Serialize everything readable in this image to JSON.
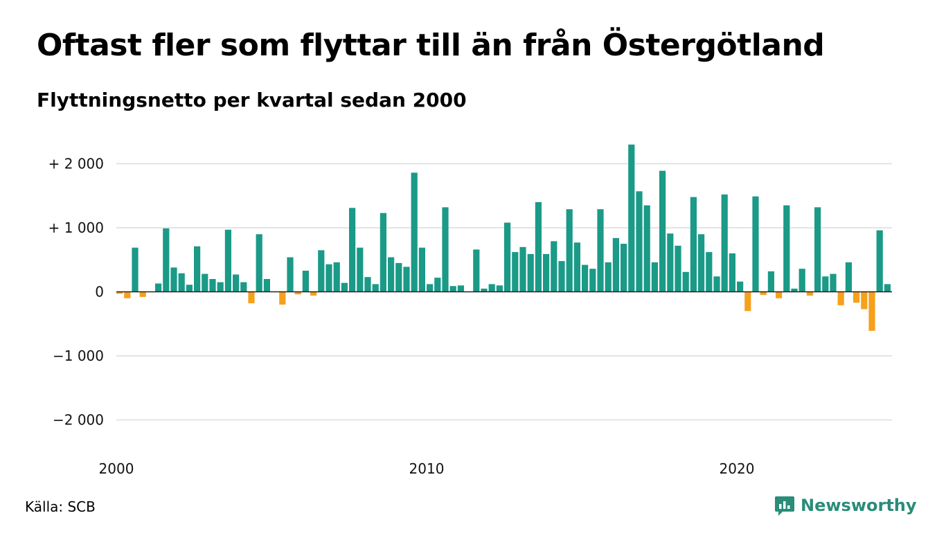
{
  "title": "Oftast fler som flyttar till än från Östergötland",
  "subtitle": "Flyttningsnetto per kvartal sedan 2000",
  "source": "Källa: SCB",
  "brand": {
    "name": "Newsworthy",
    "icon": "newsworthy-logo-icon",
    "color": "#2a8c79"
  },
  "chart_data": {
    "type": "bar",
    "x_start": 2000,
    "periods_per_year": 4,
    "xticks": [
      2000,
      2010,
      2020
    ],
    "xtick_labels": [
      "2000",
      "2010",
      "2020"
    ],
    "yticks": [
      2000,
      1000,
      0,
      -1000,
      -2000
    ],
    "ytick_labels": [
      "+ 2 000",
      "+ 1 000",
      "0",
      "−1 000",
      "−2 000"
    ],
    "ylim": [
      -2400,
      2400
    ],
    "grid": true,
    "positive_color": "#1a9a87",
    "negative_color": "#f5a11c",
    "values": [
      -30,
      -100,
      690,
      -80,
      0,
      130,
      990,
      380,
      290,
      110,
      710,
      280,
      200,
      150,
      970,
      270,
      150,
      -180,
      900,
      200,
      0,
      -200,
      540,
      -40,
      330,
      -60,
      650,
      430,
      460,
      140,
      1310,
      690,
      230,
      120,
      1230,
      540,
      450,
      390,
      1860,
      690,
      120,
      220,
      1320,
      90,
      100,
      0,
      660,
      50,
      120,
      100,
      1080,
      620,
      700,
      590,
      1400,
      590,
      790,
      480,
      1290,
      770,
      420,
      360,
      1290,
      460,
      840,
      750,
      2300,
      1570,
      1350,
      460,
      1890,
      910,
      720,
      310,
      1480,
      900,
      620,
      240,
      1520,
      600,
      160,
      -300,
      1490,
      -50,
      320,
      -100,
      1350,
      50,
      360,
      -60,
      1320,
      240,
      280,
      -210,
      460,
      -170,
      -270,
      -610,
      960,
      120
    ]
  }
}
